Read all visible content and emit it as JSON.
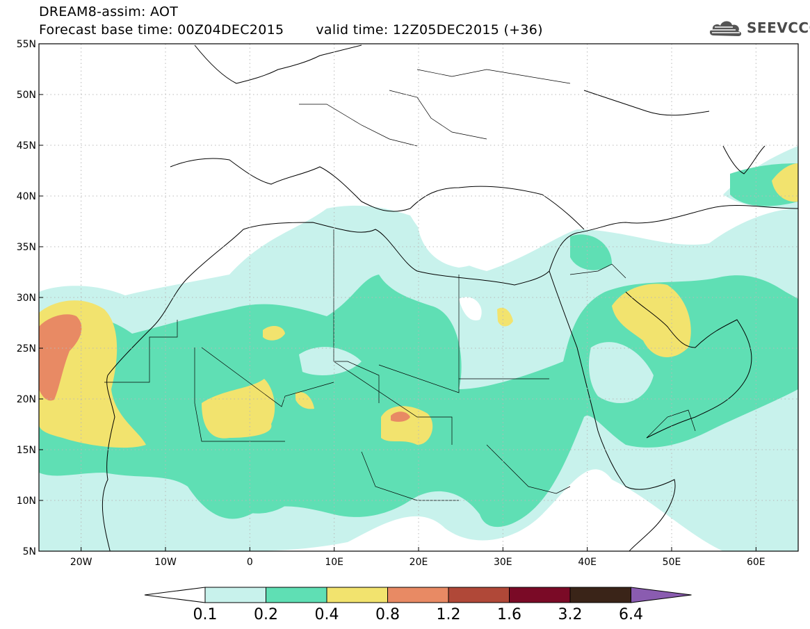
{
  "title": {
    "line1": "DREAM8-assim: AOT",
    "base_time": "Forecast base time: 00Z04DEC2015",
    "valid_time": "valid time: 12Z05DEC2015 (+36)"
  },
  "logo": {
    "text": "SEEVCCC",
    "icon": "cloud-icon"
  },
  "map": {
    "lat_labels": [
      "55N",
      "50N",
      "45N",
      "40N",
      "35N",
      "30N",
      "25N",
      "20N",
      "15N",
      "10N",
      "5N"
    ],
    "lon_labels": [
      "20W",
      "10W",
      "0",
      "10E",
      "20E",
      "30E",
      "40E",
      "50E",
      "60E"
    ],
    "lat_range": [
      5,
      55
    ],
    "lon_range": [
      -25,
      65
    ]
  },
  "colorbar": {
    "labels": [
      "0.1",
      "0.2",
      "0.4",
      "0.8",
      "1.2",
      "1.6",
      "3.2",
      "6.4"
    ],
    "colors": [
      "#ffffff",
      "#c8f2ec",
      "#5fdfb4",
      "#f2e36e",
      "#e88a64",
      "#b04838",
      "#7a0a26",
      "#3a2418",
      "#8a5cb0"
    ]
  }
}
